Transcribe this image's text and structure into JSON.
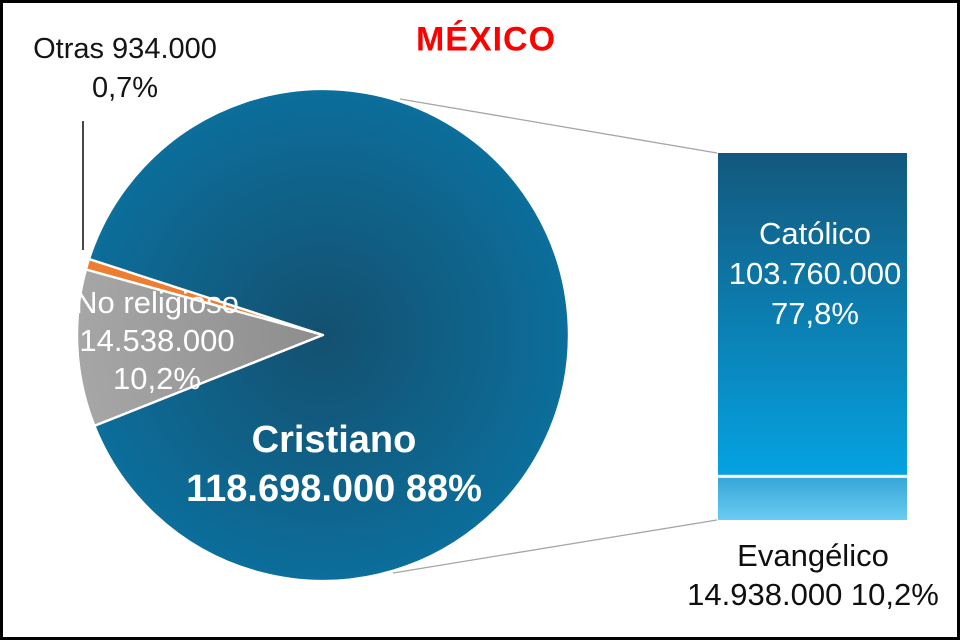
{
  "labels": {
    "title": "MÉXICO",
    "otras": [
      "Otras 934.000",
      "0,7%"
    ],
    "no_religioso": [
      "No religioso",
      "14.538.000",
      "10,2%"
    ],
    "cristiano": [
      "Cristiano",
      "118.698.000 88%"
    ],
    "catolico": [
      "Católico",
      "103.760.000",
      "77,8%"
    ],
    "evangelico": [
      "Evangélico",
      "14.938.000 10,2%"
    ]
  },
  "colors": {
    "title": "#FE0000",
    "connector_line": "#A6A6A6",
    "callout_line": "#1a1a1a",
    "slice_border": "#FFFFFF"
  },
  "chart_data": {
    "type": "pie",
    "subtype": "bar-of-pie",
    "title": "MÉXICO",
    "pie": {
      "start_angle_deg": 162,
      "direction": "ccw",
      "slices": [
        {
          "name": "Otras",
          "value": 934000,
          "value_label": "934.000",
          "pct": 0.7,
          "pct_label": "0,7%",
          "color": "#ED7D31"
        },
        {
          "name": "No religioso",
          "value": 14538000,
          "value_label": "14.538.000",
          "pct": 10.2,
          "pct_label": "10,2%",
          "gradient": [
            "#8D8D8D",
            "#A6A6A6"
          ]
        },
        {
          "name": "Cristiano",
          "value": 118698000,
          "value_label": "118.698.000",
          "pct": 88,
          "pct_label": "88%",
          "gradient": [
            "#14506F",
            "#0C6E9B"
          ]
        }
      ]
    },
    "bar": {
      "breakdown_of": "Cristiano",
      "segments": [
        {
          "name": "Católico",
          "value": 103760000,
          "value_label": "103.760.000",
          "pct": 77.8,
          "pct_label": "77,8%",
          "gradient": [
            "#13587C",
            "#05A2E2"
          ]
        },
        {
          "name": "Evangélico",
          "value": 14938000,
          "value_label": "14.938.000",
          "pct": 10.2,
          "pct_label": "10,2%",
          "gradient": [
            "#38A6D9",
            "#6ACCF2"
          ]
        }
      ]
    }
  }
}
